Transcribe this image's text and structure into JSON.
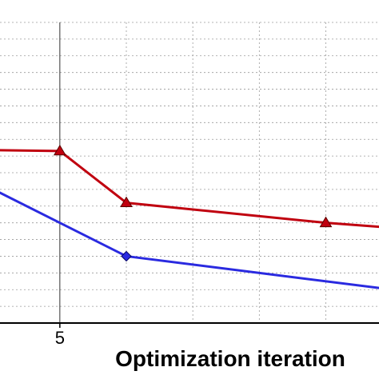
{
  "chart_data": {
    "type": "line",
    "xlabel": "Optimization iteration",
    "x_tick_labels": [
      {
        "x": 5,
        "label": "5"
      }
    ],
    "xlim": [
      4.1,
      9.8
    ],
    "ylim": [
      0,
      9
    ],
    "grid": true,
    "series": [
      {
        "color": "#c0000f",
        "marker": "triangle",
        "points": [
          {
            "x": 3,
            "y": 5.2,
            "marker": false
          },
          {
            "x": 5,
            "y": 5.15,
            "marker": true
          },
          {
            "x": 6,
            "y": 3.6,
            "marker": true
          },
          {
            "x": 9,
            "y": 3.0,
            "marker": true
          },
          {
            "x": 10,
            "y": 2.85,
            "marker": false
          }
        ]
      },
      {
        "color": "#2a2ae0",
        "marker": "diamond",
        "points": [
          {
            "x": 3,
            "y": 5.0,
            "marker": false
          },
          {
            "x": 6,
            "y": 2.0,
            "marker": true
          },
          {
            "x": 10,
            "y": 1.0,
            "marker": false
          }
        ]
      }
    ]
  }
}
